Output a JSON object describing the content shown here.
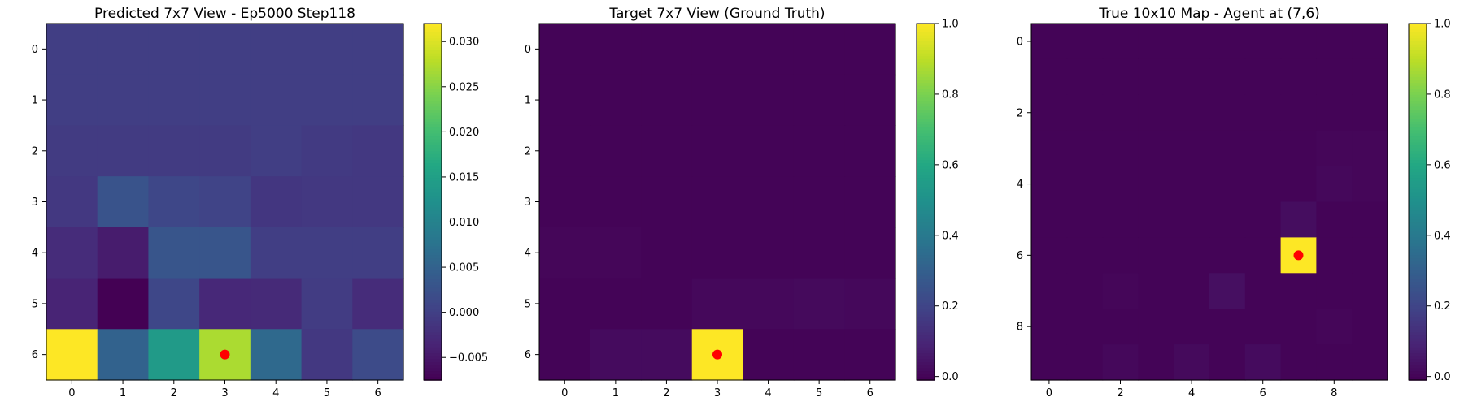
{
  "colormap": "viridis",
  "marker_color": "#ff0000",
  "chart_data": [
    {
      "type": "heatmap",
      "title": "Predicted 7x7 View - Ep5000 Step118",
      "rows": 7,
      "cols": 7,
      "xticks": [
        0,
        1,
        2,
        3,
        4,
        5,
        6
      ],
      "yticks": [
        0,
        1,
        2,
        3,
        4,
        5,
        6
      ],
      "vmin": -0.0075,
      "vmax": 0.032,
      "colorbar_ticks": [
        0.03,
        0.025,
        0.02,
        0.015,
        0.01,
        0.005,
        0.0,
        -0.005
      ],
      "colorbar_labels": [
        "0.030",
        "0.025",
        "0.020",
        "0.015",
        "0.010",
        "0.005",
        "0.000",
        "−0.005"
      ],
      "values": [
        [
          -0.0003,
          -0.0003,
          -0.0003,
          -0.0003,
          -0.0003,
          -0.0003,
          -0.0003
        ],
        [
          -0.0002,
          -0.0002,
          -0.0002,
          -0.0003,
          -0.0002,
          -0.0002,
          -0.0002
        ],
        [
          -0.0006,
          -0.0006,
          -0.0006,
          -0.0006,
          -0.0002,
          -0.0008,
          -0.001
        ],
        [
          -0.001,
          0.0028,
          0.001,
          0.0005,
          -0.0012,
          -0.001,
          -0.001
        ],
        [
          -0.0025,
          -0.0045,
          0.003,
          0.003,
          -0.0002,
          -0.0002,
          -0.0002
        ],
        [
          -0.0035,
          -0.0075,
          0.001,
          -0.003,
          -0.0028,
          -0.0005,
          -0.0025
        ],
        [
          0.032,
          0.005,
          0.014,
          0.027,
          0.006,
          -0.001,
          0.0015
        ]
      ],
      "marker": {
        "row": 6,
        "col": 3
      }
    },
    {
      "type": "heatmap",
      "title": "Target 7x7 View (Ground Truth)",
      "rows": 7,
      "cols": 7,
      "xticks": [
        0,
        1,
        2,
        3,
        4,
        5,
        6
      ],
      "yticks": [
        0,
        1,
        2,
        3,
        4,
        5,
        6
      ],
      "vmin": -0.01,
      "vmax": 1.0,
      "colorbar_ticks": [
        1.0,
        0.8,
        0.6,
        0.4,
        0.2,
        0.0
      ],
      "colorbar_labels": [
        "1.0",
        "0.8",
        "0.6",
        "0.4",
        "0.2",
        "0.0"
      ],
      "values": [
        [
          0,
          0,
          0,
          0,
          0,
          0,
          0
        ],
        [
          0,
          0,
          0,
          0,
          0,
          0,
          0
        ],
        [
          0,
          0,
          0,
          0,
          0,
          0,
          0
        ],
        [
          0,
          0,
          0,
          0,
          0,
          0,
          0
        ],
        [
          0.005,
          0.005,
          0,
          0,
          0,
          0,
          0
        ],
        [
          0,
          0,
          0,
          0.01,
          0.01,
          0.015,
          0.01
        ],
        [
          0,
          0.02,
          0.02,
          1.0,
          0,
          0,
          0
        ]
      ],
      "marker": {
        "row": 6,
        "col": 3
      }
    },
    {
      "type": "heatmap",
      "title": "True 10x10 Map - Agent at (7,6)",
      "rows": 10,
      "cols": 10,
      "xticks": [
        0,
        2,
        4,
        6,
        8
      ],
      "yticks": [
        0,
        2,
        4,
        6,
        8
      ],
      "vmin": -0.01,
      "vmax": 1.0,
      "colorbar_ticks": [
        1.0,
        0.8,
        0.6,
        0.4,
        0.2,
        0.0
      ],
      "colorbar_labels": [
        "1.0",
        "0.8",
        "0.6",
        "0.4",
        "0.2",
        "0.0"
      ],
      "values": [
        [
          0,
          0,
          0,
          0,
          0,
          0,
          0,
          0,
          0,
          0
        ],
        [
          0,
          0,
          0,
          0,
          0,
          0,
          0,
          0,
          0,
          0
        ],
        [
          0,
          0,
          0,
          0,
          0,
          0,
          0,
          0,
          0,
          0
        ],
        [
          0,
          0,
          0,
          0,
          0,
          0,
          0,
          0,
          0.005,
          0.005
        ],
        [
          0,
          0,
          0,
          0,
          0,
          0,
          0,
          0,
          0.01,
          0.005
        ],
        [
          0,
          0,
          0,
          0,
          0,
          0,
          0,
          0.025,
          0,
          0
        ],
        [
          0,
          0,
          0,
          0,
          0,
          0,
          0,
          1.0,
          0,
          0
        ],
        [
          0,
          0,
          0.005,
          0,
          0,
          0.03,
          0,
          0,
          0,
          0
        ],
        [
          0,
          0,
          0,
          0,
          0,
          0,
          0,
          0,
          0.005,
          0
        ],
        [
          0,
          0,
          0.01,
          0,
          0.015,
          0,
          0.02,
          0,
          0,
          0
        ]
      ],
      "marker": {
        "row": 6,
        "col": 7
      }
    }
  ]
}
